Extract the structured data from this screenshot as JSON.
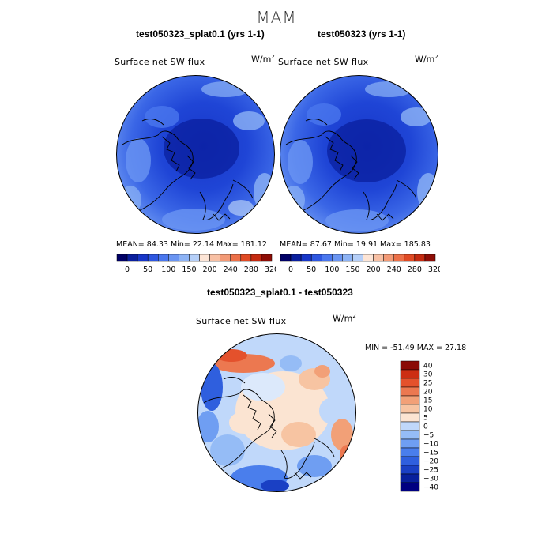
{
  "season": "MAM",
  "panel1": {
    "title": "test050323_splat0.1 (yrs 1-1)",
    "variable": "Surface net SW flux",
    "units_base": "W/m",
    "units_exp": "2",
    "stats": "MEAN=  84.33  Min=  22.14  Max= 181.12"
  },
  "panel2": {
    "title": "test050323 (yrs 1-1)",
    "variable": "Surface net SW flux",
    "units_base": "W/m",
    "units_exp": "2",
    "stats": "MEAN=  87.67  Min=  19.91  Max= 185.83"
  },
  "panel3": {
    "title": "test050323_splat0.1 - test050323",
    "variable": "Surface net SW flux",
    "units_base": "W/m",
    "units_exp": "2",
    "stats": "MIN = -51.49  MAX =  27.18"
  },
  "abs_colorbar": {
    "colors": [
      "#000066",
      "#0a1f9e",
      "#1736c8",
      "#2e57e0",
      "#4a77ee",
      "#6a95f2",
      "#8db3f5",
      "#b5cff8",
      "#fde5d6",
      "#f8c0a4",
      "#f39a76",
      "#ec7048",
      "#e04a24",
      "#c42a10",
      "#8e0d06"
    ],
    "labels": [
      "0",
      "50",
      "100",
      "150",
      "200",
      "240",
      "280",
      "320"
    ]
  },
  "diff_colorbar": {
    "colors": [
      "#000080",
      "#08209c",
      "#1a40c4",
      "#2f5fde",
      "#4a7eec",
      "#6f9ef2",
      "#95bcf6",
      "#c0d8fa",
      "#fbe4d2",
      "#f7c4a2",
      "#f2a077",
      "#ec7850",
      "#e4512c",
      "#cc2e12",
      "#8a0a04"
    ],
    "labels": [
      "40",
      "30",
      "25",
      "20",
      "15",
      "10",
      "5",
      "0",
      "−5",
      "−10",
      "−15",
      "−20",
      "−25",
      "−30",
      "−40"
    ]
  }
}
